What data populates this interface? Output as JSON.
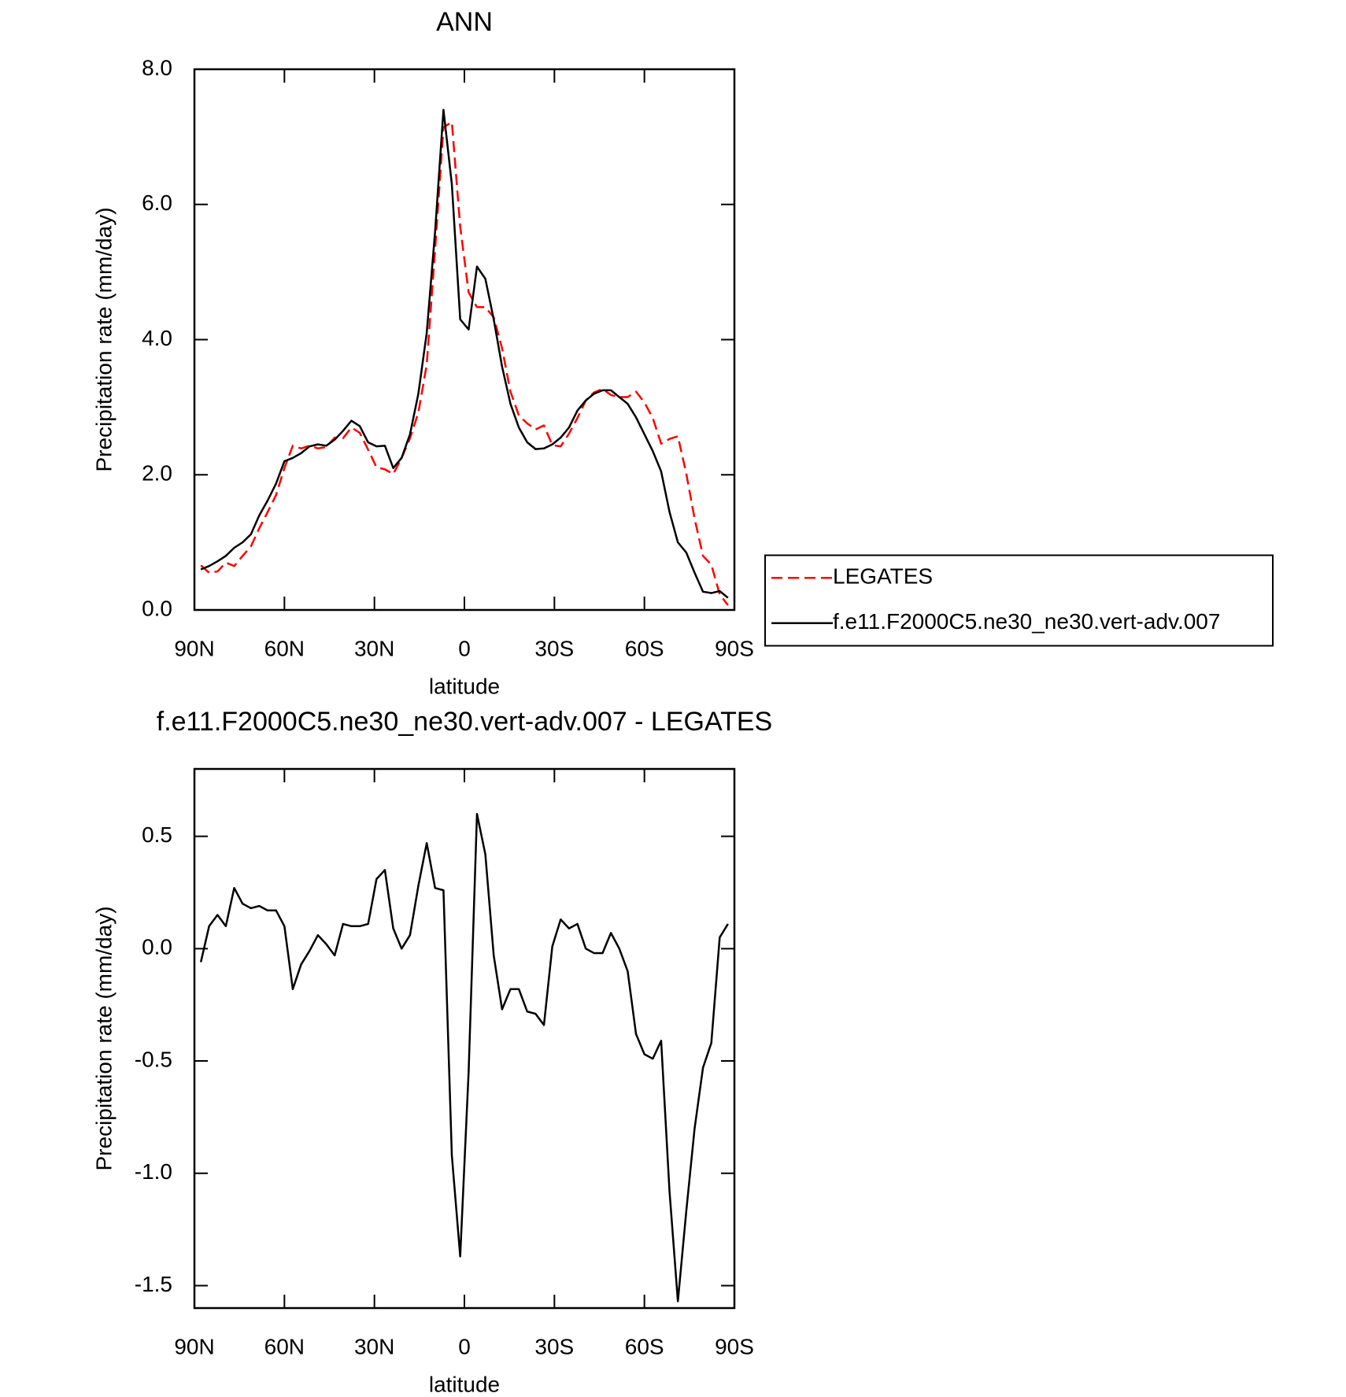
{
  "chart_data": [
    {
      "type": "line",
      "title": "ANN",
      "xlabel": "latitude",
      "ylabel": "Precipitation rate (mm/day)",
      "x": [
        87.86,
        85.1,
        82.31,
        79.53,
        76.74,
        73.95,
        71.16,
        68.37,
        65.58,
        62.79,
        60.0,
        57.21,
        54.42,
        51.63,
        48.84,
        46.05,
        43.25,
        40.46,
        37.67,
        34.88,
        32.09,
        29.3,
        26.51,
        23.72,
        20.93,
        18.14,
        15.35,
        12.56,
        9.77,
        6.98,
        4.19,
        1.4,
        -1.4,
        -4.19,
        -6.98,
        -9.77,
        -12.56,
        -15.35,
        -18.14,
        -20.93,
        -23.72,
        -26.51,
        -29.3,
        -32.09,
        -34.88,
        -37.67,
        -40.46,
        -43.25,
        -46.05,
        -48.84,
        -51.63,
        -54.42,
        -57.21,
        -60.0,
        -62.79,
        -65.58,
        -68.37,
        -71.16,
        -73.95,
        -76.74,
        -79.53,
        -82.31,
        -85.1,
        -87.86
      ],
      "series": [
        {
          "name": "LEGATES",
          "color": "#ff0000",
          "line_style": "dashed",
          "values": [
            0.66,
            0.55,
            0.57,
            0.7,
            0.65,
            0.8,
            0.94,
            1.21,
            1.45,
            1.7,
            2.1,
            2.43,
            2.39,
            2.43,
            2.39,
            2.41,
            2.55,
            2.54,
            2.7,
            2.62,
            2.37,
            2.11,
            2.08,
            2.01,
            2.25,
            2.54,
            2.92,
            3.63,
            5.33,
            7.14,
            7.22,
            5.67,
            4.7,
            4.48,
            4.48,
            4.33,
            3.87,
            3.23,
            2.88,
            2.76,
            2.67,
            2.73,
            2.44,
            2.42,
            2.61,
            2.84,
            3.1,
            3.22,
            3.27,
            3.18,
            3.15,
            3.15,
            3.23,
            3.07,
            2.84,
            2.46,
            2.53,
            2.57,
            2.02,
            1.35,
            0.8,
            0.67,
            0.23,
            0.07
          ]
        },
        {
          "name": "f.e11.F2000C5.ne30_ne30.vert-adv.007",
          "color": "#000000",
          "line_style": "solid",
          "values": [
            0.6,
            0.65,
            0.72,
            0.8,
            0.92,
            1.0,
            1.12,
            1.4,
            1.62,
            1.87,
            2.2,
            2.25,
            2.32,
            2.42,
            2.45,
            2.43,
            2.52,
            2.65,
            2.8,
            2.72,
            2.48,
            2.42,
            2.43,
            2.1,
            2.25,
            2.6,
            3.2,
            4.1,
            5.6,
            7.4,
            6.3,
            4.3,
            4.15,
            5.08,
            4.9,
            4.3,
            3.6,
            3.05,
            2.7,
            2.48,
            2.38,
            2.39,
            2.45,
            2.55,
            2.7,
            2.95,
            3.1,
            3.2,
            3.25,
            3.25,
            3.15,
            3.05,
            2.85,
            2.6,
            2.35,
            2.05,
            1.45,
            1.0,
            0.85,
            0.55,
            0.27,
            0.25,
            0.28,
            0.18
          ]
        }
      ],
      "xlim": [
        90,
        -90
      ],
      "xticks": [
        {
          "value": 90,
          "label": "90N"
        },
        {
          "value": 60,
          "label": "60N"
        },
        {
          "value": 30,
          "label": "30N"
        },
        0,
        {
          "value": -30,
          "label": "30S"
        },
        {
          "value": -60,
          "label": "60S"
        },
        {
          "value": -90,
          "label": "90S"
        }
      ],
      "ylim": [
        0,
        8
      ],
      "yticks": [
        {
          "value": 0,
          "label": "0.0"
        },
        {
          "value": 2,
          "label": "2.0"
        },
        {
          "value": 4,
          "label": "4.0"
        },
        {
          "value": 6,
          "label": "6.0"
        },
        {
          "value": 8,
          "label": "8.0"
        }
      ],
      "legend": "right"
    },
    {
      "type": "line",
      "title": "f.e11.F2000C5.ne30_ne30.vert-adv.007 - LEGATES",
      "xlabel": "latitude",
      "ylabel": "Precipitation rate (mm/day)",
      "x": [
        87.86,
        85.1,
        82.31,
        79.53,
        76.74,
        73.95,
        71.16,
        68.37,
        65.58,
        62.79,
        60.0,
        57.21,
        54.42,
        51.63,
        48.84,
        46.05,
        43.25,
        40.46,
        37.67,
        34.88,
        32.09,
        29.3,
        26.51,
        23.72,
        20.93,
        18.14,
        15.35,
        12.56,
        9.77,
        6.98,
        4.19,
        1.4,
        -1.4,
        -4.19,
        -6.98,
        -9.77,
        -12.56,
        -15.35,
        -18.14,
        -20.93,
        -23.72,
        -26.51,
        -29.3,
        -32.09,
        -34.88,
        -37.67,
        -40.46,
        -43.25,
        -46.05,
        -48.84,
        -51.63,
        -54.42,
        -57.21,
        -60.0,
        -62.79,
        -65.58,
        -68.37,
        -71.16,
        -73.95,
        -76.74,
        -79.53,
        -82.31,
        -85.1,
        -87.86
      ],
      "series": [
        {
          "color": "#000000",
          "line_style": "solid",
          "values": [
            -0.06,
            0.1,
            0.15,
            0.1,
            0.27,
            0.2,
            0.18,
            0.19,
            0.17,
            0.17,
            0.1,
            -0.18,
            -0.07,
            -0.01,
            0.06,
            0.02,
            -0.03,
            0.11,
            0.1,
            0.1,
            0.11,
            0.31,
            0.35,
            0.09,
            0.0,
            0.06,
            0.28,
            0.47,
            0.27,
            0.26,
            -0.92,
            -1.37,
            -0.55,
            0.6,
            0.42,
            -0.03,
            -0.27,
            -0.18,
            -0.18,
            -0.28,
            -0.29,
            -0.34,
            0.01,
            0.13,
            0.09,
            0.11,
            0.0,
            -0.02,
            -0.02,
            0.07,
            0.0,
            -0.1,
            -0.38,
            -0.47,
            -0.49,
            -0.41,
            -1.08,
            -1.57,
            -1.17,
            -0.8,
            -0.53,
            -0.42,
            0.05,
            0.11
          ]
        }
      ],
      "xlim": [
        90,
        -90
      ],
      "xticks": [
        {
          "value": 90,
          "label": "90N"
        },
        {
          "value": 60,
          "label": "60N"
        },
        {
          "value": 30,
          "label": "30N"
        },
        0,
        {
          "value": -30,
          "label": "30S"
        },
        {
          "value": -60,
          "label": "60S"
        },
        {
          "value": -90,
          "label": "90S"
        }
      ],
      "ylim": [
        -1.6,
        0.8
      ],
      "yticks": [
        -1.5,
        {
          "value": -1,
          "label": "-1.0"
        },
        {
          "value": -0.5,
          "label": "-0.5"
        },
        {
          "value": 0,
          "label": "0.0"
        },
        0.5
      ]
    }
  ]
}
